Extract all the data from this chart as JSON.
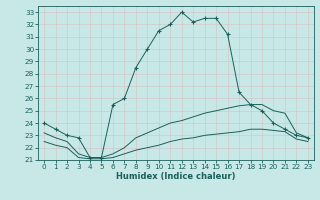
{
  "xlabel": "Humidex (Indice chaleur)",
  "background_color": "#c8e8e8",
  "grid_color": "#b0d4d4",
  "line_color": "#1a5f5a",
  "xlim": [
    -0.5,
    23.5
  ],
  "ylim": [
    21,
    33.5
  ],
  "xticks": [
    0,
    1,
    2,
    3,
    4,
    5,
    6,
    7,
    8,
    9,
    10,
    11,
    12,
    13,
    14,
    15,
    16,
    17,
    18,
    19,
    20,
    21,
    22,
    23
  ],
  "yticks": [
    21,
    22,
    23,
    24,
    25,
    26,
    27,
    28,
    29,
    30,
    31,
    32,
    33
  ],
  "main_x": [
    0,
    1,
    2,
    3,
    4,
    5,
    6,
    7,
    8,
    9,
    10,
    11,
    12,
    13,
    14,
    15,
    16,
    17,
    18,
    19,
    20,
    21,
    22,
    23
  ],
  "main_y": [
    24.0,
    23.5,
    23.0,
    22.8,
    21.2,
    21.2,
    25.5,
    26.0,
    28.5,
    30.0,
    31.5,
    32.0,
    33.0,
    32.2,
    32.5,
    32.5,
    31.2,
    26.5,
    25.5,
    25.0,
    24.0,
    23.5,
    23.0,
    22.8
  ],
  "line2_x": [
    0,
    1,
    2,
    3,
    4,
    5,
    6,
    7,
    8,
    9,
    10,
    11,
    12,
    13,
    14,
    15,
    16,
    17,
    18,
    19,
    20,
    21,
    22,
    23
  ],
  "line2_y": [
    23.2,
    22.8,
    22.5,
    21.5,
    21.2,
    21.2,
    21.5,
    22.0,
    22.8,
    23.2,
    23.6,
    24.0,
    24.2,
    24.5,
    24.8,
    25.0,
    25.2,
    25.4,
    25.5,
    25.5,
    25.0,
    24.8,
    23.2,
    22.8
  ],
  "line3_x": [
    0,
    1,
    2,
    3,
    4,
    5,
    6,
    7,
    8,
    9,
    10,
    11,
    12,
    13,
    14,
    15,
    16,
    17,
    18,
    19,
    20,
    21,
    22,
    23
  ],
  "line3_y": [
    22.5,
    22.2,
    22.0,
    21.2,
    21.1,
    21.1,
    21.2,
    21.5,
    21.8,
    22.0,
    22.2,
    22.5,
    22.7,
    22.8,
    23.0,
    23.1,
    23.2,
    23.3,
    23.5,
    23.5,
    23.4,
    23.3,
    22.7,
    22.5
  ]
}
